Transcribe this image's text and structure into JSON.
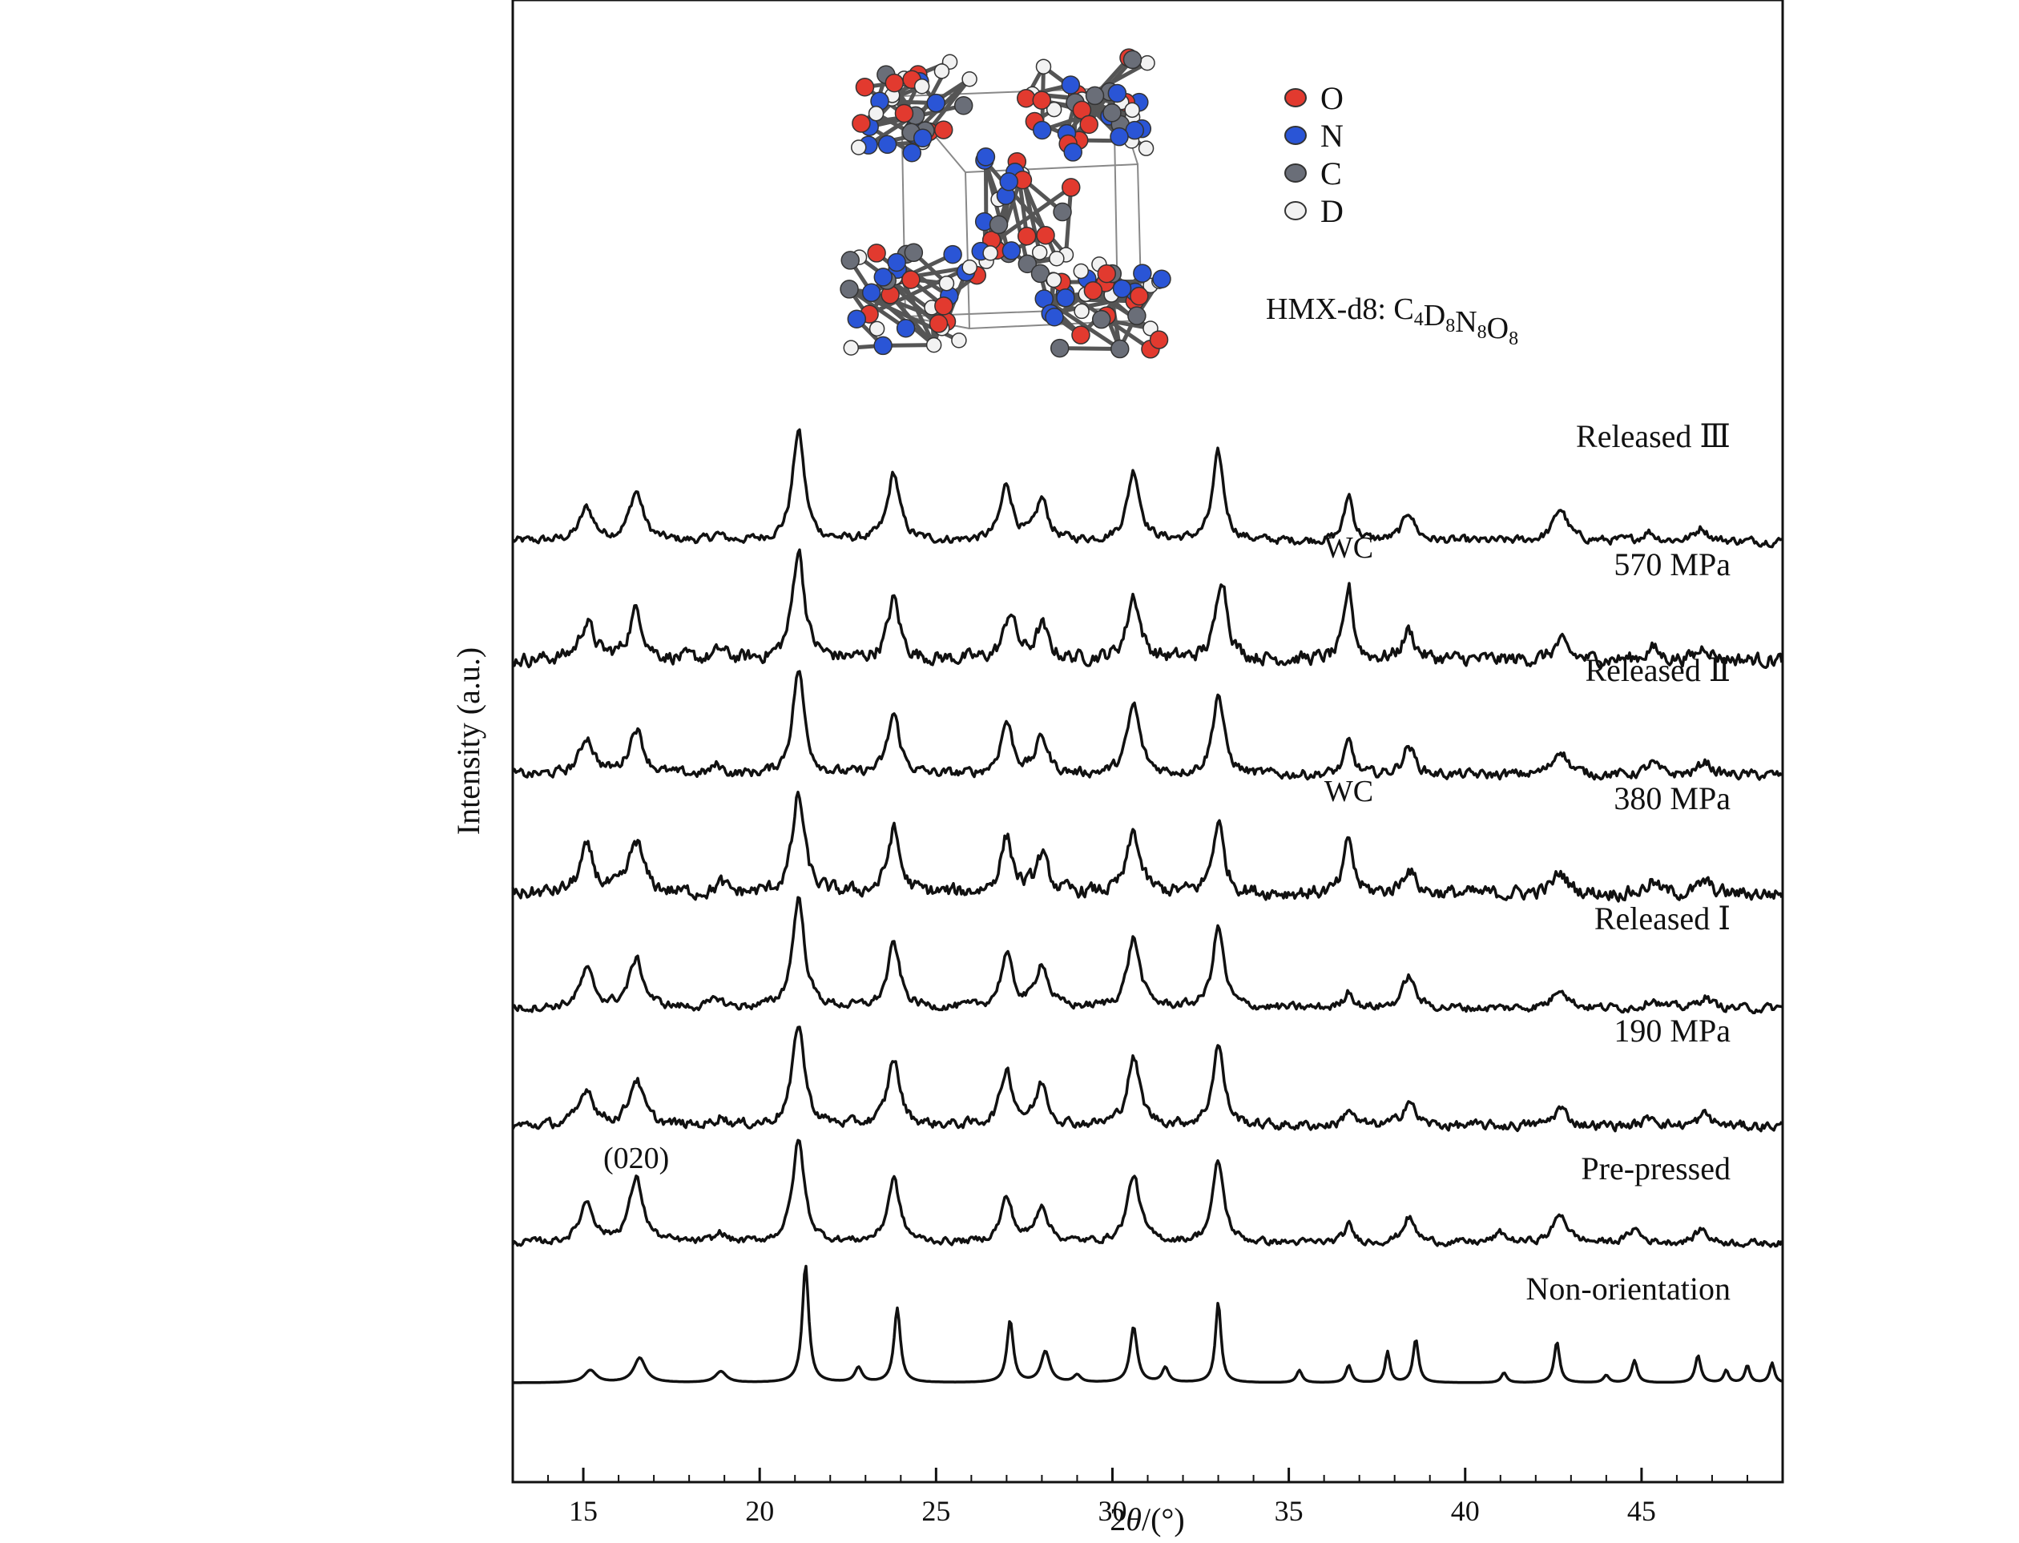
{
  "chart_data": {
    "type": "line",
    "title": "",
    "xlabel_prefix": "2",
    "xlabel_symbol": "θ",
    "xlabel_suffix": "/(°)",
    "ylabel": "Intensity (a.u.)",
    "xlim": [
      13,
      49
    ],
    "xticks": [
      15,
      20,
      25,
      30,
      35,
      40,
      45
    ],
    "y_ticks_shown": false,
    "grid": false,
    "legend": {
      "position": "top-right",
      "entries": [
        {
          "label": "O",
          "color": "#e23a2f"
        },
        {
          "label": "N",
          "color": "#2a55d6"
        },
        {
          "label": "C",
          "color": "#6a6e78"
        },
        {
          "label": "D",
          "color": "#f2f2f2"
        }
      ]
    },
    "formula": {
      "prefix": "HMX-d8: ",
      "parts": [
        [
          "C",
          "4"
        ],
        [
          "D",
          "8"
        ],
        [
          "N",
          "8"
        ],
        [
          "O",
          "8"
        ]
      ]
    },
    "annotations": [
      {
        "text": "(020)",
        "series": "Pre-pressed",
        "x": 16.5
      },
      {
        "text": "WC",
        "series": "570 MPa",
        "x": 36.7
      },
      {
        "text": "WC",
        "series": "380 MPa",
        "x": 36.7
      }
    ],
    "series": [
      {
        "name": "Released Ⅲ",
        "peaks": [
          [
            15.1,
            0.28,
            0.35
          ],
          [
            16.5,
            0.42,
            0.35
          ],
          [
            18.8,
            0.05,
            0.25
          ],
          [
            21.1,
            0.95,
            0.3
          ],
          [
            23.8,
            0.58,
            0.3
          ],
          [
            27.0,
            0.48,
            0.3
          ],
          [
            28.0,
            0.35,
            0.3
          ],
          [
            30.6,
            0.6,
            0.32
          ],
          [
            33.0,
            0.75,
            0.28
          ],
          [
            36.7,
            0.4,
            0.22
          ],
          [
            38.4,
            0.25,
            0.3
          ],
          [
            42.7,
            0.28,
            0.35
          ],
          [
            45.2,
            0.08,
            0.3
          ],
          [
            46.7,
            0.12,
            0.3
          ]
        ],
        "noise": 0.03
      },
      {
        "name": "570 MPa",
        "peaks": [
          [
            15.1,
            0.32,
            0.35
          ],
          [
            16.5,
            0.42,
            0.35
          ],
          [
            18.9,
            0.08,
            0.25
          ],
          [
            21.1,
            0.95,
            0.3
          ],
          [
            23.8,
            0.52,
            0.3
          ],
          [
            27.1,
            0.4,
            0.3
          ],
          [
            28.0,
            0.28,
            0.3
          ],
          [
            30.6,
            0.55,
            0.32
          ],
          [
            33.1,
            0.72,
            0.28
          ],
          [
            36.7,
            0.62,
            0.22
          ],
          [
            38.4,
            0.25,
            0.3
          ],
          [
            42.7,
            0.15,
            0.35
          ],
          [
            45.3,
            0.1,
            0.3
          ],
          [
            46.8,
            0.12,
            0.3
          ]
        ],
        "noise": 0.05
      },
      {
        "name": "Released Ⅱ",
        "peaks": [
          [
            15.1,
            0.32,
            0.35
          ],
          [
            16.5,
            0.4,
            0.35
          ],
          [
            18.8,
            0.08,
            0.25
          ],
          [
            21.1,
            0.9,
            0.3
          ],
          [
            23.8,
            0.52,
            0.3
          ],
          [
            27.0,
            0.45,
            0.3
          ],
          [
            28.0,
            0.32,
            0.3
          ],
          [
            30.6,
            0.6,
            0.32
          ],
          [
            33.0,
            0.7,
            0.28
          ],
          [
            36.7,
            0.28,
            0.22
          ],
          [
            38.4,
            0.25,
            0.3
          ],
          [
            42.7,
            0.22,
            0.35
          ],
          [
            45.3,
            0.1,
            0.3
          ],
          [
            46.8,
            0.12,
            0.3
          ]
        ],
        "noise": 0.035
      },
      {
        "name": "380 MPa",
        "peaks": [
          [
            15.1,
            0.38,
            0.35
          ],
          [
            16.5,
            0.45,
            0.35
          ],
          [
            18.9,
            0.08,
            0.25
          ],
          [
            21.1,
            0.85,
            0.3
          ],
          [
            23.8,
            0.55,
            0.3
          ],
          [
            27.0,
            0.48,
            0.3
          ],
          [
            28.0,
            0.32,
            0.3
          ],
          [
            30.6,
            0.52,
            0.32
          ],
          [
            33.0,
            0.62,
            0.28
          ],
          [
            36.7,
            0.48,
            0.22
          ],
          [
            38.4,
            0.22,
            0.3
          ],
          [
            42.7,
            0.18,
            0.35
          ],
          [
            45.3,
            0.1,
            0.3
          ],
          [
            46.8,
            0.1,
            0.3
          ]
        ],
        "noise": 0.05
      },
      {
        "name": "Released Ⅰ",
        "peaks": [
          [
            15.1,
            0.32,
            0.35
          ],
          [
            16.5,
            0.42,
            0.35
          ],
          [
            18.8,
            0.08,
            0.25
          ],
          [
            21.1,
            0.95,
            0.3
          ],
          [
            23.8,
            0.55,
            0.3
          ],
          [
            27.0,
            0.45,
            0.3
          ],
          [
            28.0,
            0.38,
            0.3
          ],
          [
            30.6,
            0.6,
            0.32
          ],
          [
            33.0,
            0.7,
            0.28
          ],
          [
            36.7,
            0.15,
            0.22
          ],
          [
            38.4,
            0.28,
            0.3
          ],
          [
            42.7,
            0.18,
            0.35
          ],
          [
            45.3,
            0.08,
            0.3
          ],
          [
            46.8,
            0.1,
            0.3
          ]
        ],
        "noise": 0.03
      },
      {
        "name": "190 MPa",
        "peaks": [
          [
            15.1,
            0.32,
            0.35
          ],
          [
            16.5,
            0.4,
            0.35
          ],
          [
            18.9,
            0.08,
            0.25
          ],
          [
            21.1,
            0.88,
            0.3
          ],
          [
            23.8,
            0.58,
            0.3
          ],
          [
            27.0,
            0.48,
            0.3
          ],
          [
            28.0,
            0.35,
            0.3
          ],
          [
            30.6,
            0.58,
            0.32
          ],
          [
            33.0,
            0.7,
            0.28
          ],
          [
            36.7,
            0.15,
            0.22
          ],
          [
            38.4,
            0.22,
            0.3
          ],
          [
            42.7,
            0.15,
            0.35
          ],
          [
            45.3,
            0.08,
            0.3
          ],
          [
            46.8,
            0.1,
            0.3
          ]
        ],
        "noise": 0.035
      },
      {
        "name": "Pre-pressed",
        "peaks": [
          [
            15.1,
            0.35,
            0.35
          ],
          [
            16.5,
            0.55,
            0.35
          ],
          [
            18.9,
            0.08,
            0.25
          ],
          [
            21.1,
            0.88,
            0.3
          ],
          [
            23.8,
            0.55,
            0.3
          ],
          [
            27.0,
            0.38,
            0.3
          ],
          [
            28.0,
            0.32,
            0.3
          ],
          [
            30.6,
            0.58,
            0.32
          ],
          [
            33.0,
            0.7,
            0.28
          ],
          [
            36.7,
            0.15,
            0.22
          ],
          [
            38.4,
            0.22,
            0.3
          ],
          [
            41.0,
            0.08,
            0.3
          ],
          [
            42.7,
            0.25,
            0.35
          ],
          [
            44.8,
            0.12,
            0.3
          ],
          [
            46.7,
            0.12,
            0.3
          ]
        ],
        "noise": 0.025
      },
      {
        "name": "Non-orientation",
        "peaks": [
          [
            15.2,
            0.1,
            0.3
          ],
          [
            16.6,
            0.2,
            0.3
          ],
          [
            18.9,
            0.09,
            0.28
          ],
          [
            21.3,
            0.95,
            0.16
          ],
          [
            22.8,
            0.12,
            0.18
          ],
          [
            23.9,
            0.6,
            0.16
          ],
          [
            27.1,
            0.5,
            0.16
          ],
          [
            28.1,
            0.25,
            0.22
          ],
          [
            29.0,
            0.06,
            0.18
          ],
          [
            30.6,
            0.45,
            0.18
          ],
          [
            31.5,
            0.12,
            0.16
          ],
          [
            33.0,
            0.65,
            0.14
          ],
          [
            35.3,
            0.1,
            0.14
          ],
          [
            36.7,
            0.14,
            0.14
          ],
          [
            37.8,
            0.25,
            0.12
          ],
          [
            38.6,
            0.35,
            0.14
          ],
          [
            41.1,
            0.08,
            0.14
          ],
          [
            42.6,
            0.33,
            0.14
          ],
          [
            44.0,
            0.06,
            0.14
          ],
          [
            44.8,
            0.18,
            0.14
          ],
          [
            46.6,
            0.22,
            0.14
          ],
          [
            47.4,
            0.1,
            0.12
          ],
          [
            48.0,
            0.14,
            0.12
          ],
          [
            48.7,
            0.16,
            0.12
          ]
        ],
        "noise": 0.0
      }
    ]
  }
}
